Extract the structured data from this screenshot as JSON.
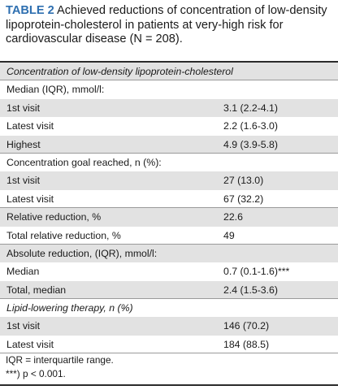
{
  "caption": {
    "label": "TABLE 2",
    "text": "Achieved reductions of concentration of low-density lipoprotein-cholesterol in patients at very-high risk for cardiovascular disease (N = 208)."
  },
  "rows": [
    {
      "label": "Concentration of low-density lipoprotein-cholesterol",
      "value": ""
    },
    {
      "label": "Median (IQR), mmol/l:",
      "value": ""
    },
    {
      "label": "1st visit",
      "value": "3.1 (2.2-4.1)"
    },
    {
      "label": "Latest visit",
      "value": "2.2 (1.6-3.0)"
    },
    {
      "label": "Highest",
      "value": "4.9 (3.9-5.8)"
    },
    {
      "label": "Concentration goal reached, n (%):",
      "value": ""
    },
    {
      "label": "1st visit",
      "value": "27 (13.0)"
    },
    {
      "label": "Latest visit",
      "value": "67 (32.2)"
    },
    {
      "label": "Relative reduction, %",
      "value": "22.6"
    },
    {
      "label": "Total relative reduction, %",
      "value": "49"
    },
    {
      "label": "Absolute reduction, (IQR), mmol/l:",
      "value": ""
    },
    {
      "label": "Median",
      "value": "0.7 (0.1-1.6)***"
    },
    {
      "label": "Total, median",
      "value": "2.4 (1.5-3.6)"
    },
    {
      "label": "Lipid-lowering therapy, n (%)",
      "value": ""
    },
    {
      "label": "1st visit",
      "value": "146 (70.2)"
    },
    {
      "label": "Latest visit",
      "value": "184 (88.5)"
    }
  ],
  "footnotes": {
    "iqr": "IQR = interquartile range.",
    "sig": "***) p < 0.001."
  }
}
